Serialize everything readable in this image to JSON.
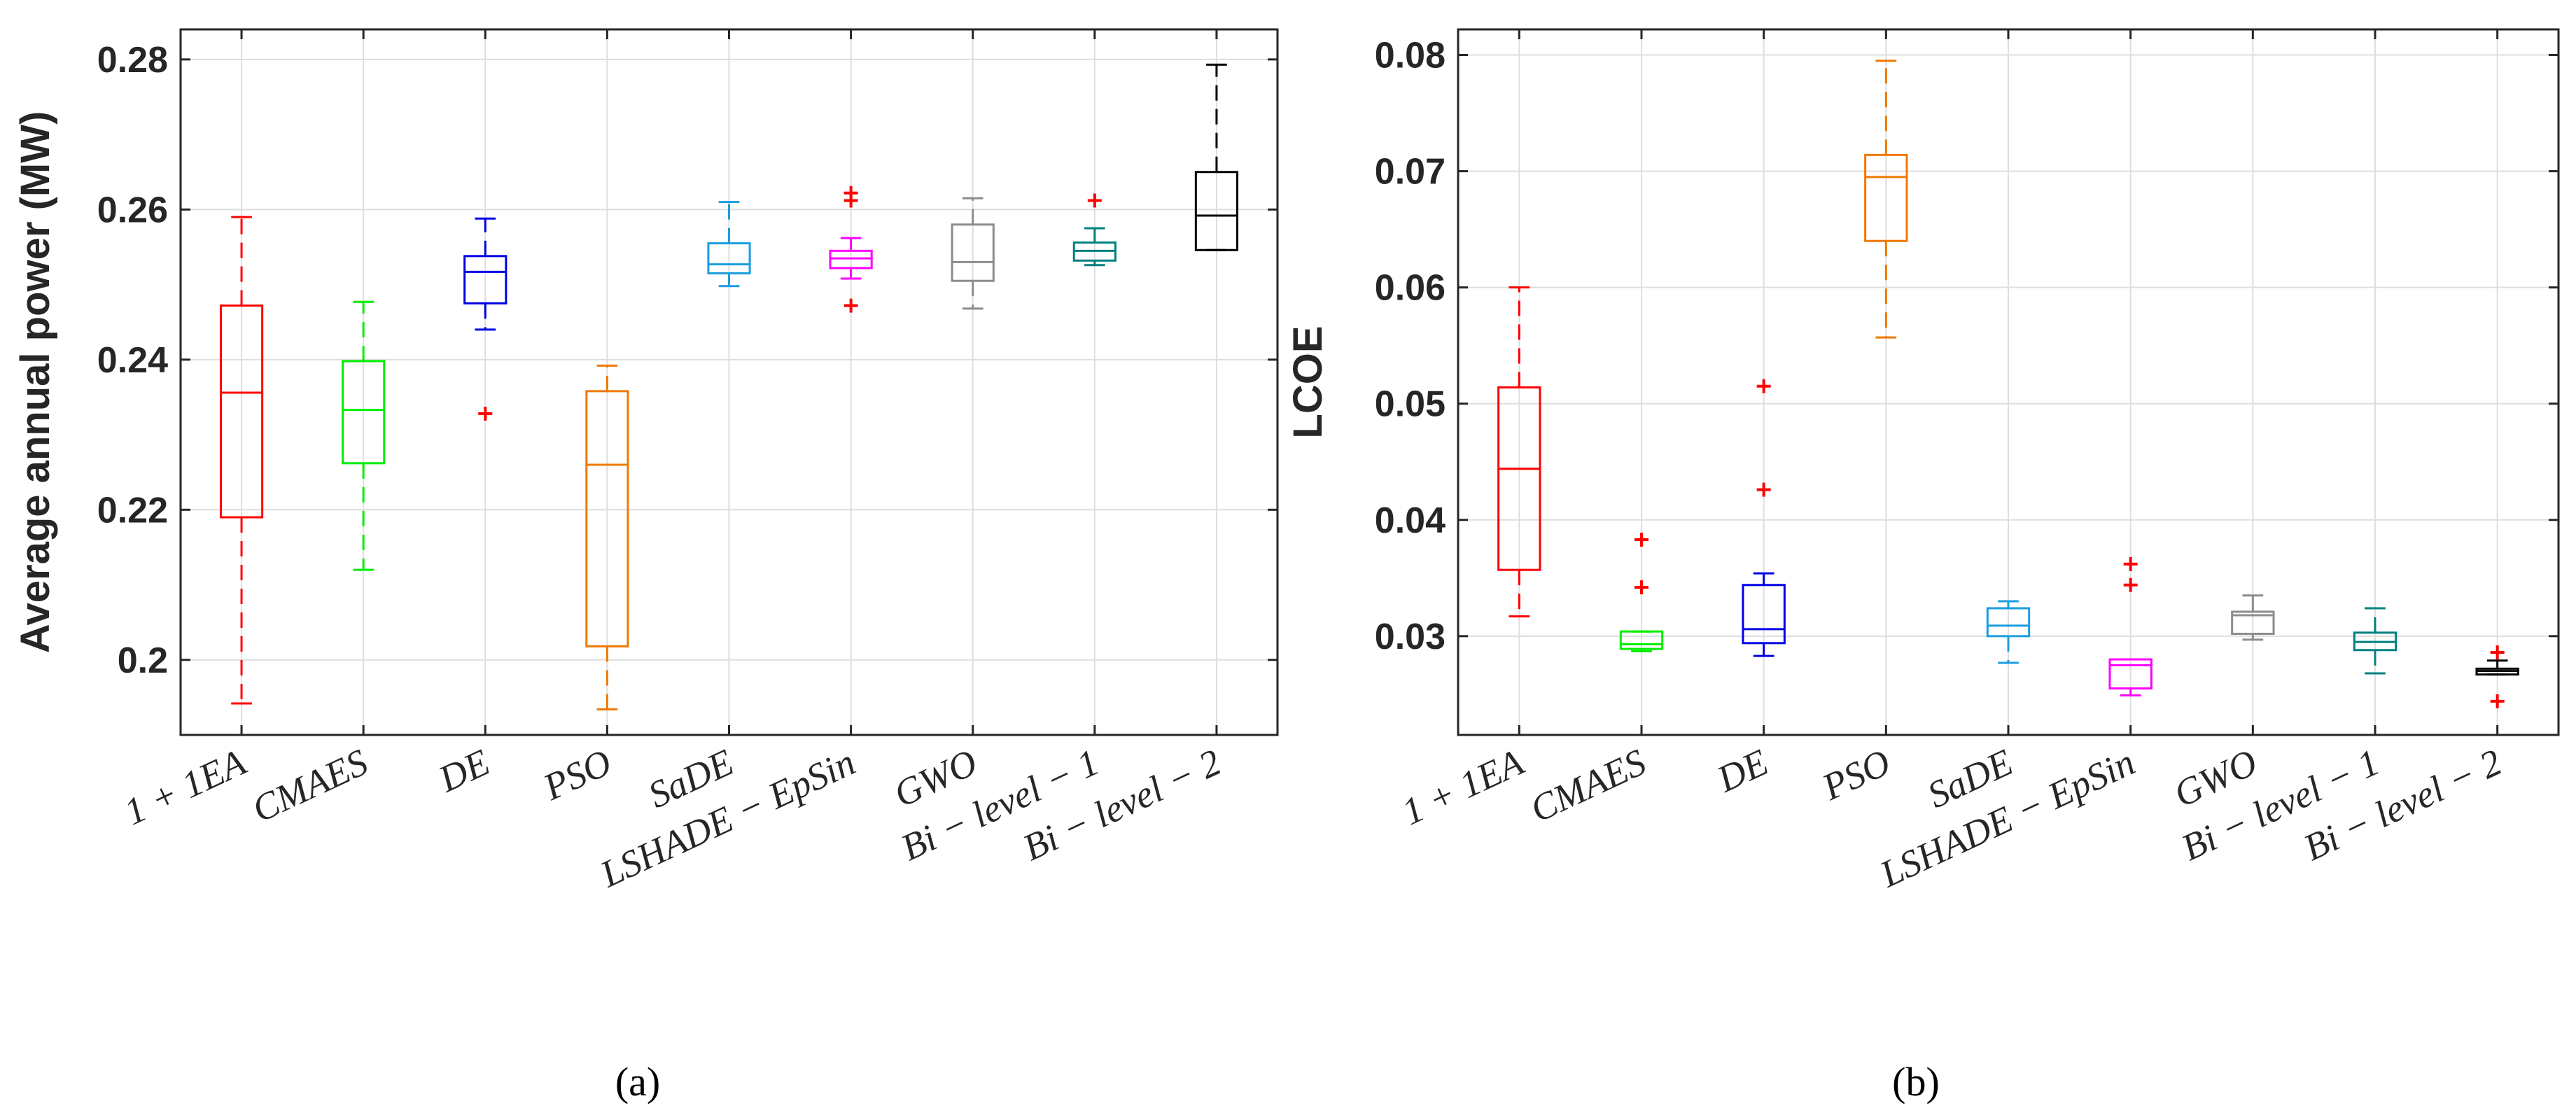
{
  "chart_data": [
    {
      "type": "box",
      "panel_label": "a",
      "title": "",
      "xlabel": "",
      "ylabel": "Average annual power (MW)",
      "ylim": [
        0.19,
        0.284
      ],
      "yticks": [
        "0.2",
        "0.22",
        "0.24",
        "0.26",
        "0.28"
      ],
      "ytick_values": [
        0.2,
        0.22,
        0.24,
        0.26,
        0.28
      ],
      "grid": true,
      "categories": [
        "1 + 1EA",
        "CMAES",
        "DE",
        "PSO",
        "SaDE",
        "LSHADE − EpSin",
        "GWO",
        "Bi − level − 1",
        "Bi − level − 2"
      ],
      "boxes": [
        {
          "name": "1 + 1EA",
          "color": "#ff0000",
          "min": 0.1942,
          "q1": 0.219,
          "median": 0.2356,
          "q3": 0.2472,
          "max": 0.259,
          "outliers": []
        },
        {
          "name": "CMAES",
          "color": "#00ee00",
          "min": 0.212,
          "q1": 0.2262,
          "median": 0.2333,
          "q3": 0.2398,
          "max": 0.2477,
          "outliers": []
        },
        {
          "name": "DE",
          "color": "#0000e6",
          "min": 0.244,
          "q1": 0.2475,
          "median": 0.2517,
          "q3": 0.2538,
          "max": 0.2588,
          "outliers": [
            0.2328
          ]
        },
        {
          "name": "PSO",
          "color": "#f07800",
          "min": 0.1934,
          "q1": 0.2018,
          "median": 0.226,
          "q3": 0.2358,
          "max": 0.2392,
          "outliers": []
        },
        {
          "name": "SaDE",
          "color": "#1a9ee0",
          "min": 0.2498,
          "q1": 0.2515,
          "median": 0.2527,
          "q3": 0.2555,
          "max": 0.261,
          "outliers": []
        },
        {
          "name": "LSHADE − EpSin",
          "color": "#ff00ff",
          "min": 0.2508,
          "q1": 0.2522,
          "median": 0.2535,
          "q3": 0.2545,
          "max": 0.2562,
          "outliers": [
            0.2472,
            0.2612,
            0.2622
          ]
        },
        {
          "name": "GWO",
          "color": "#8c8c8c",
          "min": 0.2468,
          "q1": 0.2505,
          "median": 0.253,
          "q3": 0.258,
          "max": 0.2615,
          "outliers": []
        },
        {
          "name": "Bi − level − 1",
          "color": "#008080",
          "min": 0.2526,
          "q1": 0.2532,
          "median": 0.2545,
          "q3": 0.2556,
          "max": 0.2575,
          "outliers": [
            0.2612
          ]
        },
        {
          "name": "Bi − level − 2",
          "color": "#000000",
          "min": 0.2546,
          "q1": 0.2546,
          "median": 0.2592,
          "q3": 0.265,
          "max": 0.2793,
          "outliers": []
        }
      ]
    },
    {
      "type": "box",
      "panel_label": "b",
      "title": "",
      "xlabel": "",
      "ylabel": "LCOE",
      "ylim": [
        0.0215,
        0.0822
      ],
      "yticks": [
        "0.03",
        "0.04",
        "0.05",
        "0.06",
        "0.07",
        "0.08"
      ],
      "ytick_values": [
        0.03,
        0.04,
        0.05,
        0.06,
        0.07,
        0.08
      ],
      "grid": true,
      "categories": [
        "1 + 1EA",
        "CMAES",
        "DE",
        "PSO",
        "SaDE",
        "LSHADE − EpSin",
        "GWO",
        "Bi − level − 1",
        "Bi − level − 2"
      ],
      "boxes": [
        {
          "name": "1 + 1EA",
          "color": "#ff0000",
          "min": 0.0317,
          "q1": 0.0357,
          "median": 0.0444,
          "q3": 0.0514,
          "max": 0.06,
          "outliers": []
        },
        {
          "name": "CMAES",
          "color": "#00ee00",
          "min": 0.0287,
          "q1": 0.0289,
          "median": 0.0293,
          "q3": 0.0304,
          "max": 0.0304,
          "outliers": [
            0.0342,
            0.0383
          ]
        },
        {
          "name": "DE",
          "color": "#0000e6",
          "min": 0.0283,
          "q1": 0.0294,
          "median": 0.0306,
          "q3": 0.0344,
          "max": 0.0354,
          "outliers": [
            0.0426,
            0.0515
          ]
        },
        {
          "name": "PSO",
          "color": "#f07800",
          "min": 0.0557,
          "q1": 0.064,
          "median": 0.0695,
          "q3": 0.0714,
          "max": 0.0795,
          "outliers": []
        },
        {
          "name": "SaDE",
          "color": "#1a9ee0",
          "min": 0.0277,
          "q1": 0.03,
          "median": 0.0309,
          "q3": 0.0324,
          "max": 0.033,
          "outliers": []
        },
        {
          "name": "LSHADE − EpSin",
          "color": "#ff00ff",
          "min": 0.0249,
          "q1": 0.0255,
          "median": 0.0275,
          "q3": 0.028,
          "max": 0.028,
          "outliers": [
            0.0344,
            0.0362
          ]
        },
        {
          "name": "GWO",
          "color": "#8c8c8c",
          "min": 0.0297,
          "q1": 0.0302,
          "median": 0.0318,
          "q3": 0.0321,
          "max": 0.0335,
          "outliers": []
        },
        {
          "name": "Bi − level − 1",
          "color": "#008080",
          "min": 0.0268,
          "q1": 0.0288,
          "median": 0.0295,
          "q3": 0.0303,
          "max": 0.0324,
          "outliers": []
        },
        {
          "name": "Bi − level − 2",
          "color": "#000000",
          "min": 0.0267,
          "q1": 0.0267,
          "median": 0.027,
          "q3": 0.0272,
          "max": 0.0279,
          "outliers": [
            0.0244,
            0.0286
          ]
        }
      ]
    }
  ],
  "captions": [
    "(a)",
    "(b)"
  ]
}
